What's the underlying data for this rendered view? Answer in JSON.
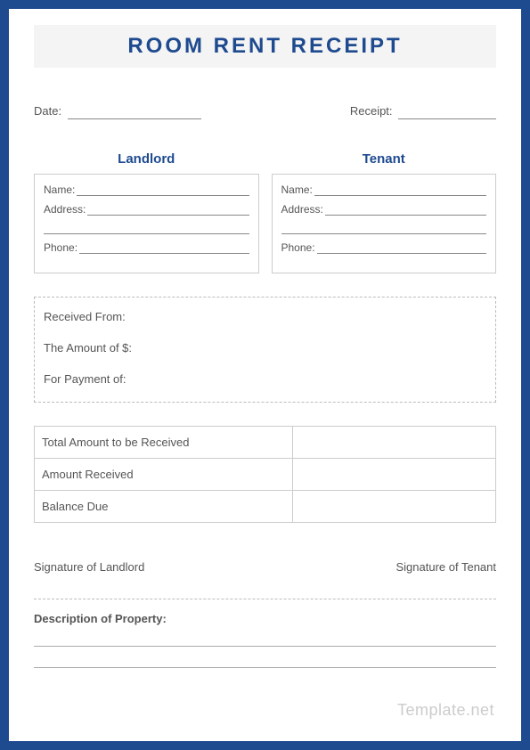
{
  "title": "ROOM RENT RECEIPT",
  "top_fields": {
    "date_label": "Date:",
    "receipt_label": "Receipt:"
  },
  "parties": {
    "landlord_header": "Landlord",
    "tenant_header": "Tenant",
    "name_label": "Name:",
    "address_label": "Address:",
    "phone_label": "Phone:"
  },
  "received_box": {
    "line1": "Received From:",
    "line2": "The Amount of $:",
    "line3": "For Payment of:"
  },
  "table_rows": {
    "total": "Total Amount to be Received",
    "received": "Amount Received",
    "balance": "Balance Due"
  },
  "signatures": {
    "landlord": "Signature of Landlord",
    "tenant": "Signature of Tenant"
  },
  "description_header": "Description of Property:",
  "watermark": "Template.net"
}
